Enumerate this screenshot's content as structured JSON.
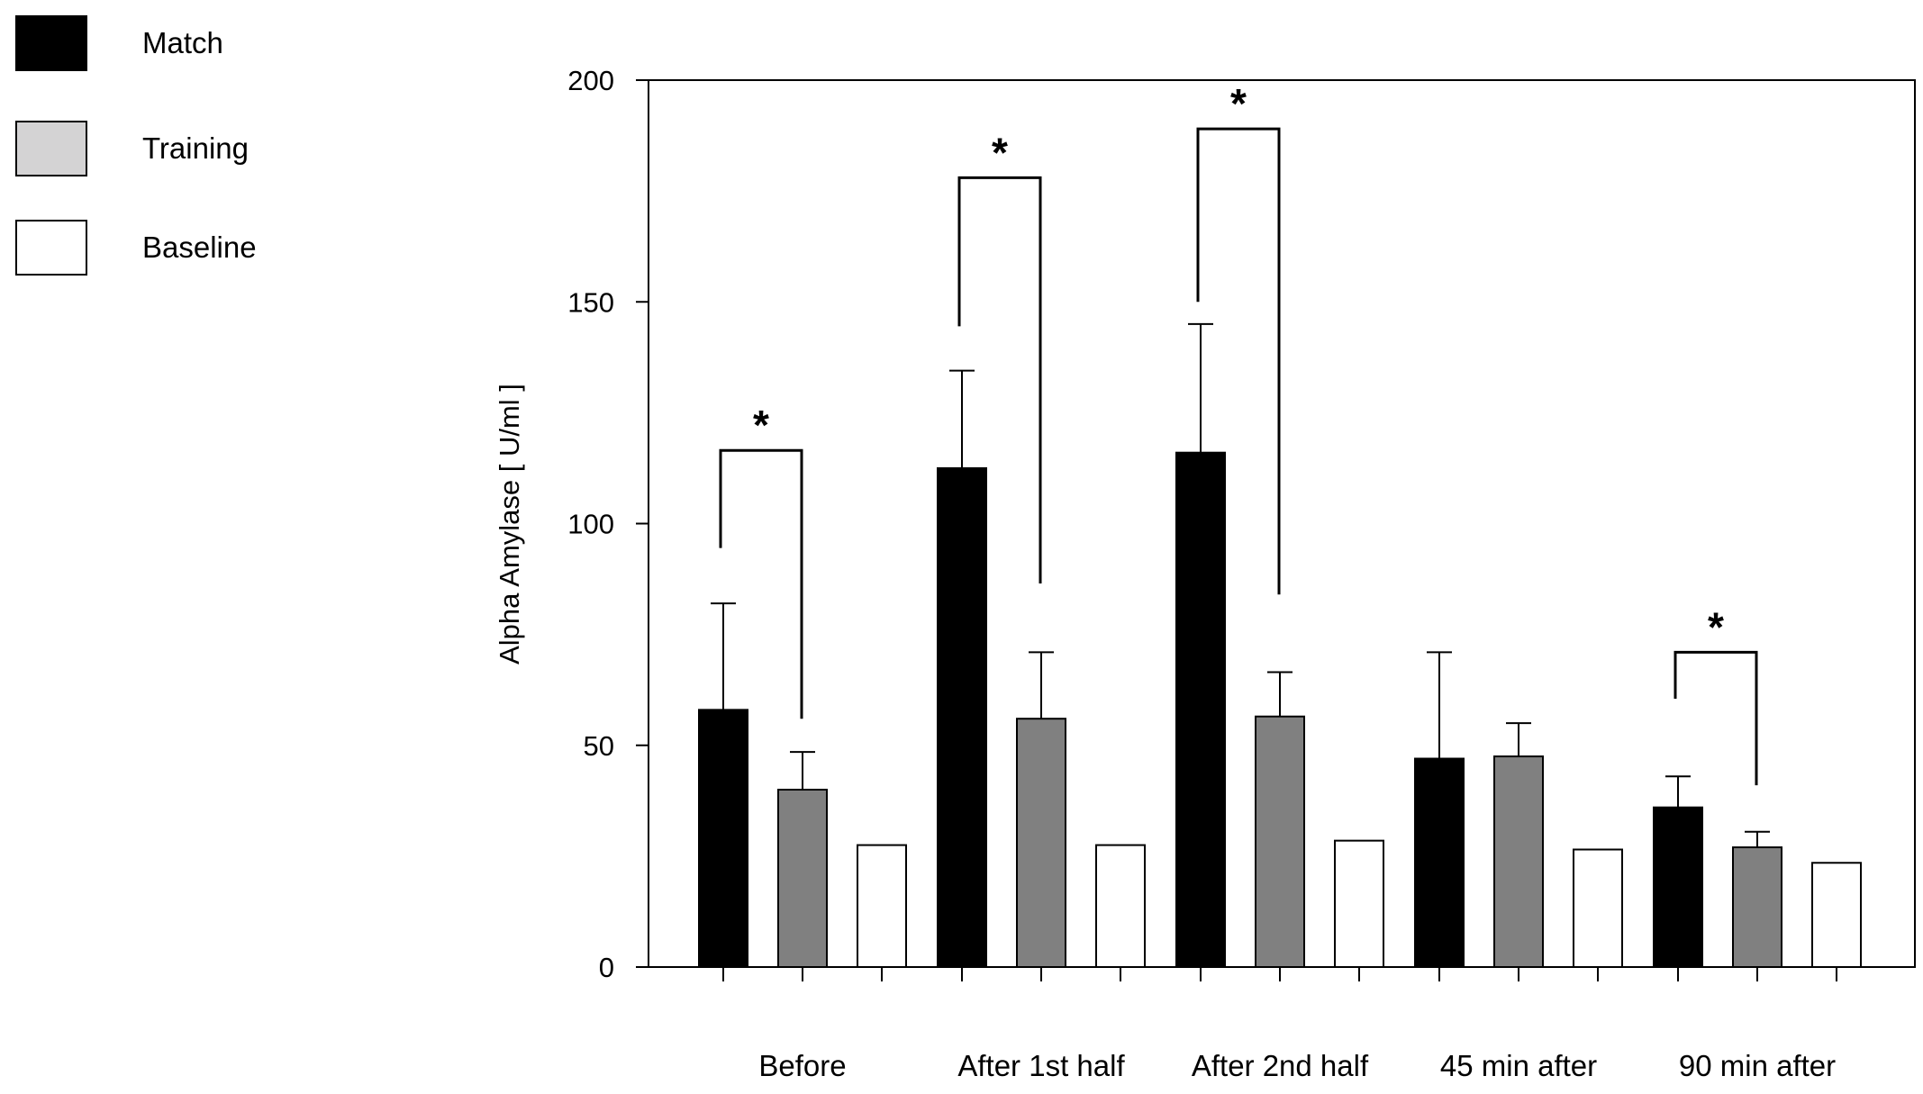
{
  "chart_data": {
    "type": "bar",
    "title": "",
    "xlabel": "",
    "ylabel": "Alpha Amylase [ U/ml ]",
    "ylim": [
      0,
      200
    ],
    "yticks": [
      0,
      50,
      100,
      150,
      200
    ],
    "categories": [
      "Before",
      "After 1st half",
      "After 2nd half",
      "45 min after",
      "90 min after"
    ],
    "series": [
      {
        "name": "Match",
        "color": "#000000",
        "values": [
          58,
          112.5,
          116,
          47,
          36
        ],
        "errors": [
          24,
          22,
          29,
          24,
          7
        ]
      },
      {
        "name": "Training",
        "color": "#808080",
        "legend_color": "#d4d3d4",
        "values": [
          40,
          56,
          56.5,
          47.5,
          27
        ],
        "errors": [
          8.5,
          15,
          10,
          7.5,
          3.5
        ]
      },
      {
        "name": "Baseline",
        "color": "#ffffff",
        "values": [
          27.5,
          27.5,
          28.5,
          26.5,
          23.5
        ],
        "errors": [
          0,
          0,
          0,
          0,
          0
        ]
      }
    ],
    "significance": [
      {
        "category": "Before",
        "between": [
          "Match",
          "Training"
        ],
        "label": "*",
        "bracket_top": 116.5,
        "left_end": 94.5,
        "right_end": 56
      },
      {
        "category": "After 1st half",
        "between": [
          "Match",
          "Training"
        ],
        "label": "*",
        "bracket_top": 178,
        "left_end": 144.5,
        "right_end": 86.5
      },
      {
        "category": "After 2nd half",
        "between": [
          "Match",
          "Training"
        ],
        "label": "*",
        "bracket_top": 189,
        "left_end": 150,
        "right_end": 84
      },
      {
        "category": "90 min after",
        "between": [
          "Match",
          "Training"
        ],
        "label": "*",
        "bracket_top": 71,
        "left_end": 60.5,
        "right_end": 41
      }
    ]
  }
}
